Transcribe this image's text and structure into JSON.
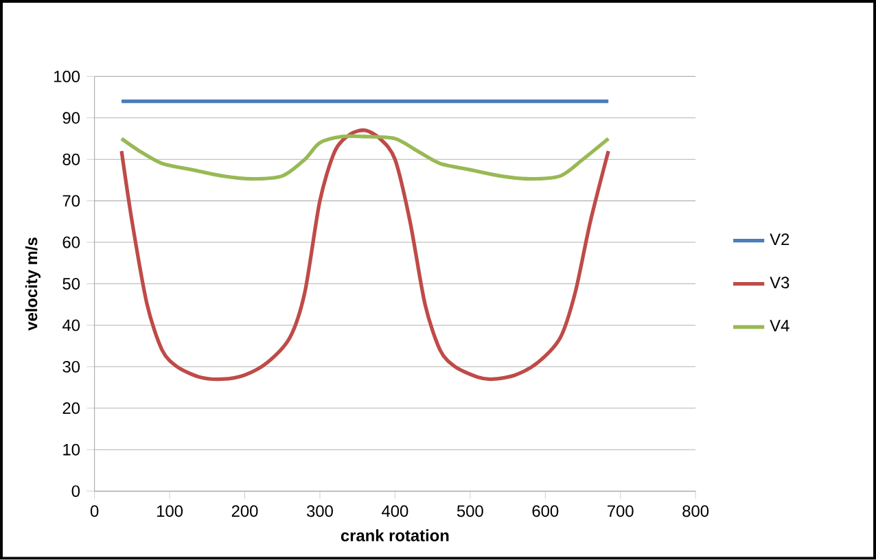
{
  "chart_data": {
    "type": "line",
    "xlabel": "crank rotation",
    "ylabel": "velocity m/s",
    "xlim": [
      0,
      800
    ],
    "ylim": [
      0,
      100
    ],
    "xticks": [
      0,
      100,
      200,
      300,
      400,
      500,
      600,
      700,
      800
    ],
    "yticks": [
      0,
      10,
      20,
      30,
      40,
      50,
      60,
      70,
      80,
      90,
      100
    ],
    "grid": "y",
    "legend": "right",
    "marker": "none",
    "line_style": "solid",
    "series": [
      {
        "name": "V2",
        "color": "#4a7ebb",
        "x": [
          36,
          684
        ],
        "values": [
          94,
          94
        ]
      },
      {
        "name": "V3",
        "color": "#be4b48",
        "x": [
          36,
          50,
          70,
          90,
          110,
          140,
          170,
          200,
          230,
          260,
          280,
          300,
          320,
          340,
          360,
          380,
          400,
          420,
          440,
          460,
          480,
          510,
          530,
          560,
          590,
          620,
          640,
          660,
          684
        ],
        "values": [
          82,
          65,
          45,
          34,
          30,
          27.5,
          27,
          28,
          31,
          37,
          48,
          70,
          82,
          86,
          87,
          85,
          80,
          65,
          45,
          34,
          30,
          27.5,
          27,
          28,
          31,
          37,
          48,
          65,
          82
        ]
      },
      {
        "name": "V4",
        "color": "#98b954",
        "x": [
          36,
          60,
          90,
          130,
          170,
          210,
          250,
          280,
          300,
          330,
          360,
          400,
          430,
          460,
          500,
          540,
          580,
          620,
          650,
          684
        ],
        "values": [
          85,
          82,
          79,
          77.5,
          76,
          75.3,
          76,
          80,
          84,
          85.5,
          85.5,
          85,
          82,
          79,
          77.5,
          76,
          75.3,
          76,
          80,
          85
        ]
      }
    ]
  }
}
